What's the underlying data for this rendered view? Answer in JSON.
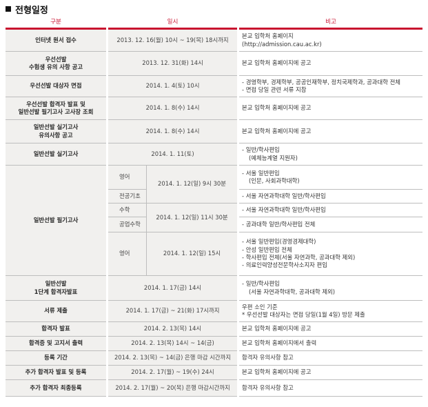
{
  "title": "전형일정",
  "headers": {
    "category": "구분",
    "schedule": "일시",
    "note": "비고"
  },
  "rows": {
    "r1": {
      "cat": [
        "인터넷 원서 접수"
      ],
      "sched": "2013. 12. 16(월) 10시 ~ 19(목) 18시까지",
      "note": [
        "본교 입학처 홈페이지",
        "(http://admission.cau.ac.kr)"
      ]
    },
    "r2": {
      "cat": [
        "우선선발",
        "수험생 유의 사항 공고"
      ],
      "sched": "2013. 12. 31(화) 14시",
      "note": [
        "본교 입학처 홈페이지에 공고"
      ]
    },
    "r3": {
      "cat": [
        "우선선발 대상자 면접"
      ],
      "sched": "2014. 1. 4(토) 10시",
      "note": [
        "- 경영학부, 경제학부, 공공인재학부, 정치국제학과, 공과대학 전체",
        "- 면접 당일 관련 서류 지참"
      ]
    },
    "r4": {
      "cat": [
        "우선선발 합격자 발표 및",
        "일반선발 필기고사 고사장 조회"
      ],
      "sched": "2014. 1. 8(수) 14시",
      "note": [
        "본교 입학처 홈페이지에 공고"
      ]
    },
    "r5": {
      "cat": [
        "일반선발 실기고사",
        "유의사항 공고"
      ],
      "sched": "2014. 1. 8(수) 14시",
      "note": [
        "본교 입학처 홈페이지에 공고"
      ]
    },
    "r6": {
      "cat": [
        "일반선발 실기고사"
      ],
      "sched": "2014. 1. 11(토)",
      "note": [
        "- 일반/학사편입",
        "(예체능계열 지원자)"
      ]
    },
    "written": {
      "cat": "일반선발 필기고사",
      "subjects": [
        "영어",
        "전공기초",
        "수학",
        "공업수학",
        "영어"
      ],
      "times": [
        "2014. 1. 12(일) 9시 30분",
        "2014. 1. 12(일) 11시 30분",
        "2014. 1. 12(일) 15시"
      ],
      "notes": [
        [
          "- 서울 일반편입",
          "(인문, 사회과학대학)"
        ],
        [
          "- 서울 자연과학대학 일반/학사편입"
        ],
        [
          "- 서울 자연과학대학 일반/학사편입"
        ],
        [
          "- 공과대학 일반/학사편입 전체"
        ],
        [
          "- 서울 일반편입(경영경제대학)",
          "- 안성 일반편입 전체",
          "- 학사편입 전체(서울 자연과학, 공과대학 제외)",
          "- 의료인력양성전문학사소지자 편입"
        ]
      ]
    },
    "r8": {
      "cat": [
        "일반선발",
        "1단계 합격자발표"
      ],
      "sched": "2014. 1. 17(금) 14시",
      "note": [
        "- 일반/학사편입",
        "(서울 자연과학대학, 공과대학 제외)"
      ]
    },
    "r9": {
      "cat": [
        "서류 제출"
      ],
      "sched": "2014. 1. 17(금) ~ 21(화) 17시까지",
      "note": [
        "우편 소인 기준",
        "* 우선선발 대상자는 면접 당일(1월 4일) 방문 제출"
      ]
    },
    "r10": {
      "cat": [
        "합격자 발표"
      ],
      "sched": "2014. 2. 13(목) 14시",
      "note": [
        "본교 입학처 홈페이지에 공고"
      ]
    },
    "r11": {
      "cat": [
        "합격증 및 고지서 출력"
      ],
      "sched": "2014. 2. 13(목) 14시 ~ 14(금)",
      "note": [
        "본교 입학처 홈페이지에서 출력"
      ]
    },
    "r12": {
      "cat": [
        "등록 기간"
      ],
      "sched": "2014. 2. 13(목) ~ 14(금) 은행 마감 시간까지",
      "note": [
        "합격자 유의사항 참고"
      ]
    },
    "r13": {
      "cat": [
        "추가 합격자 발표 및 등록"
      ],
      "sched": "2014. 2. 17(월) ~ 19(수) 24시",
      "note": [
        "본교 입학처 홈페이지에 공고"
      ]
    },
    "r14": {
      "cat": [
        "추가 합격자 최종등록"
      ],
      "sched": "2014. 2. 17(월) ~ 20(목) 은행 마감시간까지",
      "note": [
        "합격자 유의사항 참고"
      ]
    }
  }
}
